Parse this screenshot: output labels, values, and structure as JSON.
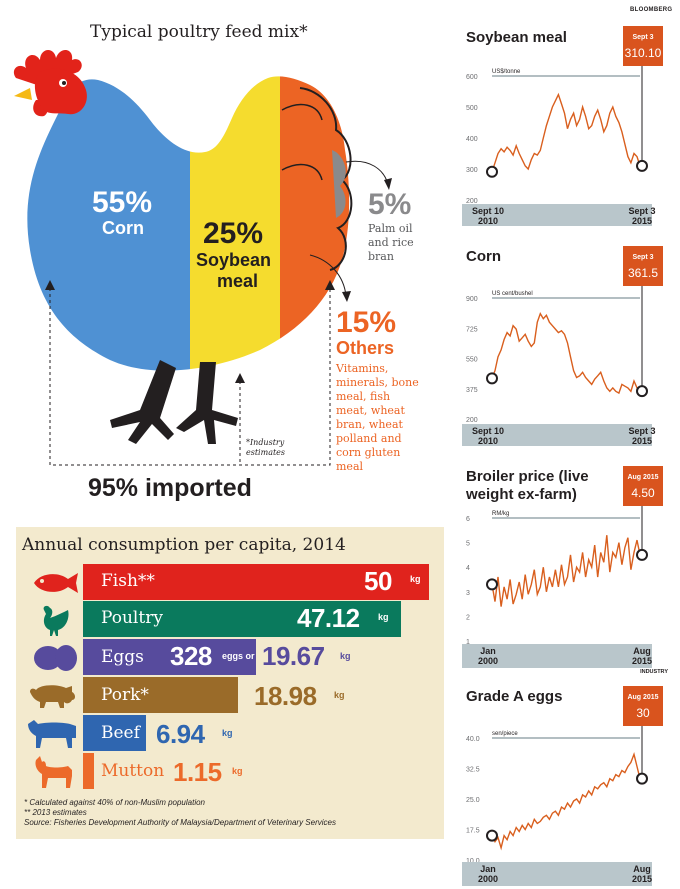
{
  "brand_top": "BLOOMBERG",
  "feed": {
    "title": "Typical poultry feed mix*",
    "corn_pct": "55%",
    "corn_label": "Corn",
    "soy_pct": "25%",
    "soy_label_1": "Soybean",
    "soy_label_2": "meal",
    "palm_pct": "5%",
    "palm_label": [
      "Palm oil",
      "and rice",
      "bran"
    ],
    "others_pct": "15%",
    "others_label": "Others",
    "others_desc": [
      "Vitamins,",
      "minerals, bone",
      "meal, fish",
      "meat, wheat",
      "bran, wheat",
      "polland and",
      "corn gluten",
      "meal"
    ],
    "estimate_note": [
      "*Industry",
      "estimates"
    ],
    "imported": "95% imported",
    "colors": {
      "corn": "#4f91d3",
      "soy": "#f5dc2e",
      "others": "#ec6424",
      "palm": "#8a8a8c",
      "comb": "#e2231a"
    }
  },
  "consumption": {
    "title": "Annual consumption per capita, 2014",
    "rows": [
      {
        "label": "Fish**",
        "value": "50",
        "unit": "kg",
        "color": "#e0231d",
        "icon": "fish-icon"
      },
      {
        "label": "Poultry",
        "value": "47.12",
        "unit": "kg",
        "color": "#0a7a5d",
        "icon": "chicken-icon"
      },
      {
        "label": "Eggs",
        "value": "328",
        "unit": "eggs or",
        "value2": "19.67",
        "unit2": "kg",
        "color": "#574b9d",
        "icon": "eggs-icon"
      },
      {
        "label": "Pork*",
        "value": "18.98",
        "unit": "kg",
        "color": "#9a6b29",
        "icon": "pig-icon"
      },
      {
        "label": "Beef",
        "value": "6.94",
        "unit": "kg",
        "color": "#2f66b0",
        "icon": "cow-icon"
      },
      {
        "label": "Mutton",
        "value": "1.15",
        "unit": "kg",
        "color": "#ec6a2a",
        "icon": "goat-icon"
      }
    ],
    "notes": [
      "* Calculated against 40% of non-Muslim population",
      "** 2013 estimates",
      "Source: Fisheries Development Authority of Malaysia/Department of Veterinary Services"
    ]
  },
  "chart_data": [
    {
      "type": "line",
      "title": "Soybean meal",
      "unit": "US$/tonne",
      "ylim": [
        200,
        600
      ],
      "yticks": [
        "600",
        "500",
        "400",
        "300",
        "200"
      ],
      "x_start": "Sept 10 2010",
      "x_end": "Sept 3 2015",
      "callout_label": "Sept 3",
      "callout_value": "310.10",
      "source": "BLOOMBERG",
      "values": [
        291,
        320,
        350,
        365,
        355,
        370,
        360,
        345,
        375,
        350,
        330,
        310,
        300,
        330,
        350,
        345,
        360,
        400,
        440,
        470,
        500,
        520,
        540,
        510,
        480,
        430,
        460,
        480,
        440,
        460,
        500,
        470,
        430,
        440,
        470,
        490,
        460,
        420,
        440,
        480,
        500,
        470,
        450,
        420,
        380,
        340,
        320,
        350,
        340,
        310
      ]
    },
    {
      "type": "line",
      "title": "Corn",
      "unit": "US cent/bushel",
      "ylim": [
        200,
        900
      ],
      "yticks": [
        "900",
        "725",
        "550",
        "375",
        "200"
      ],
      "x_start": "Sept 10 2010",
      "x_end": "Sept 3 2015",
      "callout_label": "Sept 3",
      "callout_value": "361.5",
      "source": "INDUSTRY",
      "values": [
        435,
        480,
        560,
        600,
        660,
        700,
        680,
        740,
        720,
        650,
        670,
        690,
        650,
        620,
        640,
        760,
        810,
        780,
        800,
        760,
        740,
        720,
        700,
        710,
        690,
        640,
        560,
        480,
        440,
        450,
        470,
        440,
        420,
        400,
        430,
        450,
        470,
        420,
        380,
        360,
        380,
        360,
        350,
        400,
        390,
        380,
        360,
        420,
        380,
        361
      ]
    },
    {
      "type": "line",
      "title": "Broiler price (live weight ex-farm)",
      "unit": "RM/kg",
      "ylim": [
        1,
        6
      ],
      "yticks": [
        "6",
        "5",
        "4",
        "3",
        "2",
        "1"
      ],
      "x_start": "Jan 2000",
      "x_end": "Aug 2015",
      "callout_label": "Aug 2015",
      "callout_value": "4.50",
      "source": "INDUSTRY",
      "values": [
        3.3,
        2.6,
        3.6,
        2.4,
        3.2,
        2.7,
        3.5,
        2.5,
        2.9,
        3.4,
        2.7,
        3.7,
        2.9,
        3.3,
        3.9,
        2.9,
        3.2,
        4.0,
        3.0,
        3.6,
        3.2,
        3.9,
        3.2,
        4.1,
        3.3,
        3.6,
        4.5,
        3.4,
        4.0,
        3.8,
        4.6,
        3.6,
        4.3,
        4.0,
        4.9,
        3.6,
        4.6,
        4.2,
        5.3,
        3.8,
        4.6,
        4.4,
        5.0,
        4.1,
        4.8,
        5.2,
        3.9,
        4.6,
        5.1,
        4.5
      ]
    },
    {
      "type": "line",
      "title": "Grade A eggs",
      "unit": "sen/piece",
      "ylim": [
        10,
        40
      ],
      "yticks": [
        "40.0",
        "32.5",
        "25.0",
        "17.5",
        "10.0"
      ],
      "x_start": "Jan 2000",
      "x_end": "Aug 2015",
      "callout_label": "Aug 2015",
      "callout_value": "30",
      "source": "",
      "values": [
        16.0,
        14.5,
        15.5,
        13.0,
        16.0,
        15.0,
        17.0,
        16.0,
        18.0,
        17.0,
        18.5,
        17.5,
        19.0,
        18.0,
        20.0,
        19.0,
        19.5,
        20.5,
        21.0,
        20.0,
        21.5,
        22.0,
        21.0,
        23.0,
        22.5,
        24.0,
        23.0,
        24.5,
        25.0,
        24.0,
        26.0,
        25.5,
        27.0,
        26.0,
        28.0,
        27.5,
        28.5,
        29.0,
        28.0,
        30.0,
        29.5,
        31.0,
        30.5,
        32.0,
        31.5,
        33.0,
        34.0,
        36.0,
        33.0,
        30.0
      ]
    }
  ]
}
